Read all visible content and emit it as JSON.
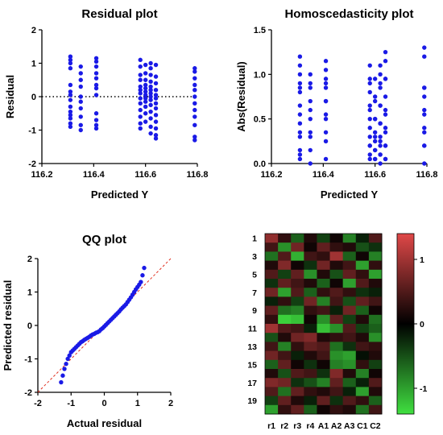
{
  "chart_data": [
    {
      "type": "scatter",
      "title": "Residual plot",
      "xlabel": "Predicted Y",
      "ylabel": "Residual",
      "xlim": [
        116.2,
        116.8
      ],
      "ylim": [
        -2,
        2
      ],
      "xticks": [
        "116.2",
        "116.4",
        "116.6",
        "116.8"
      ],
      "yticks": [
        "-2",
        "-1",
        "0",
        "1",
        "2"
      ],
      "reference_line": {
        "y": 0,
        "style": "dotted"
      },
      "marker_color": "#1a1ae6",
      "x": [
        116.31,
        116.31,
        116.31,
        116.31,
        116.31,
        116.31,
        116.31,
        116.31,
        116.31,
        116.31,
        116.31,
        116.31,
        116.31,
        116.31,
        116.35,
        116.35,
        116.35,
        116.35,
        116.35,
        116.35,
        116.35,
        116.35,
        116.35,
        116.35,
        116.41,
        116.41,
        116.41,
        116.41,
        116.41,
        116.41,
        116.41,
        116.41,
        116.41,
        116.41,
        116.41,
        116.41,
        116.58,
        116.58,
        116.58,
        116.58,
        116.58,
        116.58,
        116.58,
        116.58,
        116.58,
        116.58,
        116.58,
        116.58,
        116.58,
        116.6,
        116.6,
        116.6,
        116.6,
        116.6,
        116.6,
        116.6,
        116.6,
        116.6,
        116.6,
        116.6,
        116.6,
        116.62,
        116.62,
        116.62,
        116.62,
        116.62,
        116.62,
        116.62,
        116.62,
        116.62,
        116.62,
        116.62,
        116.62,
        116.62,
        116.62,
        116.64,
        116.64,
        116.64,
        116.64,
        116.64,
        116.64,
        116.64,
        116.64,
        116.64,
        116.64,
        116.64,
        116.64,
        116.64,
        116.79,
        116.79,
        116.79,
        116.79,
        116.79,
        116.79,
        116.79,
        116.79,
        116.79,
        116.79,
        116.79,
        116.79
      ],
      "y": [
        1.2,
        1.1,
        1.0,
        0.85,
        0.35,
        0.15,
        0.05,
        -0.1,
        -0.3,
        -0.45,
        -0.55,
        -0.65,
        -0.8,
        -0.9,
        0.9,
        0.7,
        0.5,
        0.3,
        0.0,
        -0.15,
        -0.35,
        -0.6,
        -0.85,
        -1.0,
        1.15,
        1.05,
        0.9,
        0.7,
        0.55,
        0.35,
        0.25,
        0.05,
        -0.5,
        -0.7,
        -0.85,
        -0.95,
        1.1,
        0.9,
        0.65,
        0.5,
        0.3,
        0.2,
        0.1,
        -0.05,
        -0.2,
        -0.4,
        -0.6,
        -0.8,
        -0.95,
        0.95,
        0.7,
        0.5,
        0.35,
        0.25,
        0.15,
        0.05,
        -0.05,
        -0.15,
        -0.3,
        -0.5,
        -0.75,
        1.0,
        0.85,
        0.65,
        0.45,
        0.3,
        0.2,
        0.1,
        0.0,
        -0.1,
        -0.25,
        -0.45,
        -0.65,
        -0.9,
        -1.1,
        0.95,
        0.6,
        0.4,
        0.2,
        0.05,
        -0.05,
        -0.2,
        -0.35,
        -0.55,
        -0.75,
        -0.95,
        -1.15,
        -1.25,
        0.85,
        0.75,
        0.55,
        0.35,
        0.2,
        0.0,
        -0.2,
        -0.4,
        -0.6,
        -0.85,
        -1.2,
        -1.3
      ]
    },
    {
      "type": "scatter",
      "title": "Homoscedasticity plot",
      "xlabel": "Predicted Y",
      "ylabel": "Abs(Residual)",
      "xlim": [
        116.2,
        116.8
      ],
      "ylim": [
        0,
        1.5
      ],
      "xticks": [
        "116.2",
        "116.4",
        "116.6",
        "116.8"
      ],
      "yticks": [
        "0.0",
        "0.5",
        "1.0",
        "1.5"
      ],
      "marker_color": "#1a1ae6",
      "x": [
        116.31,
        116.31,
        116.31,
        116.31,
        116.31,
        116.31,
        116.31,
        116.31,
        116.31,
        116.31,
        116.31,
        116.31,
        116.31,
        116.31,
        116.35,
        116.35,
        116.35,
        116.35,
        116.35,
        116.35,
        116.35,
        116.35,
        116.35,
        116.35,
        116.41,
        116.41,
        116.41,
        116.41,
        116.41,
        116.41,
        116.41,
        116.41,
        116.41,
        116.41,
        116.41,
        116.41,
        116.58,
        116.58,
        116.58,
        116.58,
        116.58,
        116.58,
        116.58,
        116.58,
        116.58,
        116.58,
        116.58,
        116.58,
        116.58,
        116.6,
        116.6,
        116.6,
        116.6,
        116.6,
        116.6,
        116.6,
        116.6,
        116.6,
        116.6,
        116.6,
        116.6,
        116.62,
        116.62,
        116.62,
        116.62,
        116.62,
        116.62,
        116.62,
        116.62,
        116.62,
        116.62,
        116.62,
        116.62,
        116.62,
        116.62,
        116.64,
        116.64,
        116.64,
        116.64,
        116.64,
        116.64,
        116.64,
        116.64,
        116.64,
        116.64,
        116.64,
        116.64,
        116.64,
        116.79,
        116.79,
        116.79,
        116.79,
        116.79,
        116.79,
        116.79,
        116.79,
        116.79,
        116.79,
        116.79,
        116.79
      ],
      "y": [
        1.2,
        1.1,
        1.0,
        0.85,
        0.35,
        0.15,
        0.05,
        0.1,
        0.3,
        0.45,
        0.55,
        0.65,
        0.8,
        0.9,
        0.9,
        0.7,
        0.5,
        0.3,
        0.0,
        0.15,
        0.35,
        0.6,
        0.85,
        1.0,
        1.15,
        1.05,
        0.9,
        0.7,
        0.55,
        0.35,
        0.25,
        0.05,
        0.5,
        0.7,
        0.85,
        0.95,
        1.1,
        0.9,
        0.65,
        0.5,
        0.3,
        0.2,
        0.1,
        0.05,
        0.2,
        0.4,
        0.6,
        0.8,
        0.95,
        0.95,
        0.7,
        0.5,
        0.35,
        0.25,
        0.15,
        0.05,
        0.05,
        0.15,
        0.3,
        0.5,
        0.75,
        1.0,
        0.85,
        0.65,
        0.45,
        0.3,
        0.2,
        0.1,
        0.0,
        0.1,
        0.25,
        0.45,
        0.65,
        0.9,
        1.1,
        0.95,
        0.6,
        0.4,
        0.2,
        0.05,
        0.05,
        0.2,
        0.35,
        0.55,
        0.75,
        0.95,
        1.15,
        1.25,
        0.85,
        0.75,
        0.55,
        0.35,
        0.2,
        0.0,
        0.2,
        0.4,
        0.6,
        0.85,
        1.2,
        1.3
      ]
    },
    {
      "type": "scatter",
      "title": "QQ plot",
      "xlabel": "Actual residual",
      "ylabel": "Predicted residual",
      "xlim": [
        -2,
        2
      ],
      "ylim": [
        -2,
        2
      ],
      "xticks": [
        "-2",
        "-1",
        "0",
        "1",
        "2"
      ],
      "yticks": [
        "-2",
        "-1",
        "0",
        "1",
        "2"
      ],
      "reference_line": {
        "slope": 1,
        "intercept": 0,
        "style": "dashed",
        "color": "#e03020"
      },
      "marker_color": "#1a1ae6",
      "x": [
        -1.3,
        -1.25,
        -1.2,
        -1.15,
        -1.1,
        -1.05,
        -1.0,
        -0.95,
        -0.9,
        -0.85,
        -0.8,
        -0.75,
        -0.7,
        -0.65,
        -0.6,
        -0.55,
        -0.5,
        -0.45,
        -0.4,
        -0.35,
        -0.3,
        -0.25,
        -0.2,
        -0.15,
        -0.1,
        -0.05,
        0.0,
        0.05,
        0.1,
        0.15,
        0.2,
        0.25,
        0.3,
        0.35,
        0.4,
        0.45,
        0.5,
        0.55,
        0.6,
        0.65,
        0.7,
        0.75,
        0.8,
        0.85,
        0.9,
        0.95,
        1.0,
        1.05,
        1.1,
        1.15,
        1.2
      ],
      "y": [
        -1.7,
        -1.5,
        -1.3,
        -1.15,
        -1.0,
        -0.9,
        -0.8,
        -0.75,
        -0.7,
        -0.65,
        -0.6,
        -0.55,
        -0.5,
        -0.47,
        -0.43,
        -0.4,
        -0.37,
        -0.34,
        -0.3,
        -0.27,
        -0.25,
        -0.22,
        -0.2,
        -0.17,
        -0.12,
        -0.08,
        -0.03,
        0.02,
        0.07,
        0.12,
        0.17,
        0.22,
        0.27,
        0.32,
        0.37,
        0.42,
        0.48,
        0.53,
        0.58,
        0.63,
        0.7,
        0.77,
        0.84,
        0.92,
        1.0,
        1.08,
        1.15,
        1.22,
        1.3,
        1.5,
        1.72
      ]
    },
    {
      "type": "heatmap",
      "columns": [
        "r1",
        "r2",
        "r3",
        "r4",
        "A1",
        "A2",
        "A3",
        "C1",
        "C2"
      ],
      "row_tick_labels": [
        "1",
        "3",
        "5",
        "7",
        "9",
        "11",
        "13",
        "15",
        "17",
        "19"
      ],
      "rows": 20,
      "colorbar": {
        "ticks": [
          "1",
          "0",
          "-1"
        ],
        "range": [
          -1.4,
          1.4
        ],
        "high_color": "#e04848",
        "mid_color": "#000000",
        "low_color": "#40e040"
      },
      "values": [
        [
          0.9,
          0.3,
          -0.6,
          0.2,
          -0.4,
          0.1,
          -0.8,
          -0.2,
          0.5
        ],
        [
          0.4,
          -0.9,
          0.7,
          0.1,
          0.6,
          0.3,
          0.2,
          -0.5,
          -0.3
        ],
        [
          -0.7,
          0.5,
          -1.1,
          0.4,
          0.3,
          1.0,
          -0.6,
          0.1,
          -0.8
        ],
        [
          0.2,
          0.8,
          0.1,
          -0.3,
          0.7,
          0.2,
          0.4,
          -1.0,
          0.3
        ],
        [
          0.5,
          -0.4,
          0.6,
          -0.9,
          0.2,
          -0.5,
          0.6,
          0.3,
          -1.0
        ],
        [
          -0.3,
          0.6,
          0.4,
          0.2,
          -0.6,
          0.1,
          -1.0,
          0.5,
          0.2
        ],
        [
          0.7,
          -1.0,
          0.5,
          -0.6,
          0.3,
          0.5,
          0.3,
          -0.3,
          -0.2
        ],
        [
          -0.2,
          0.3,
          -0.4,
          0.7,
          -0.8,
          0.4,
          -0.5,
          0.6,
          0.4
        ],
        [
          0.6,
          -0.7,
          -0.8,
          0.3,
          0.4,
          -0.2,
          0.7,
          -0.6,
          0.1
        ],
        [
          0.3,
          -1.3,
          -1.2,
          0.1,
          -0.9,
          0.6,
          -0.4,
          0.2,
          -0.7
        ],
        [
          1.0,
          0.5,
          0.4,
          -0.2,
          -1.2,
          -0.9,
          0.5,
          -0.4,
          -0.6
        ],
        [
          -0.5,
          0.2,
          0.7,
          0.8,
          0.2,
          0.3,
          0.4,
          0.2,
          -0.9
        ],
        [
          0.4,
          -0.8,
          0.3,
          0.6,
          0.5,
          -0.7,
          -0.3,
          0.4,
          0.3
        ],
        [
          0.7,
          0.4,
          -0.2,
          0.2,
          0.4,
          -0.9,
          -1.0,
          -0.1,
          0.2
        ],
        [
          -0.6,
          0.6,
          0.1,
          -0.3,
          0.1,
          -0.8,
          -0.9,
          0.3,
          -0.4
        ],
        [
          0.2,
          -0.5,
          0.5,
          0.4,
          -0.3,
          0.8,
          0.2,
          -0.8,
          0.1
        ],
        [
          0.8,
          0.7,
          -0.3,
          -0.5,
          -0.8,
          0.6,
          -0.6,
          -0.2,
          0.5
        ],
        [
          0.5,
          -0.7,
          0.6,
          0.3,
          0.2,
          0.4,
          -0.2,
          -1.0,
          0.2
        ],
        [
          -0.4,
          0.6,
          0.2,
          -0.2,
          0.6,
          -0.3,
          0.5,
          0.3,
          -0.6
        ],
        [
          -1.0,
          0.3,
          0.6,
          -0.6,
          0.1,
          0.3,
          0.2,
          -0.7,
          0.4
        ]
      ]
    }
  ]
}
